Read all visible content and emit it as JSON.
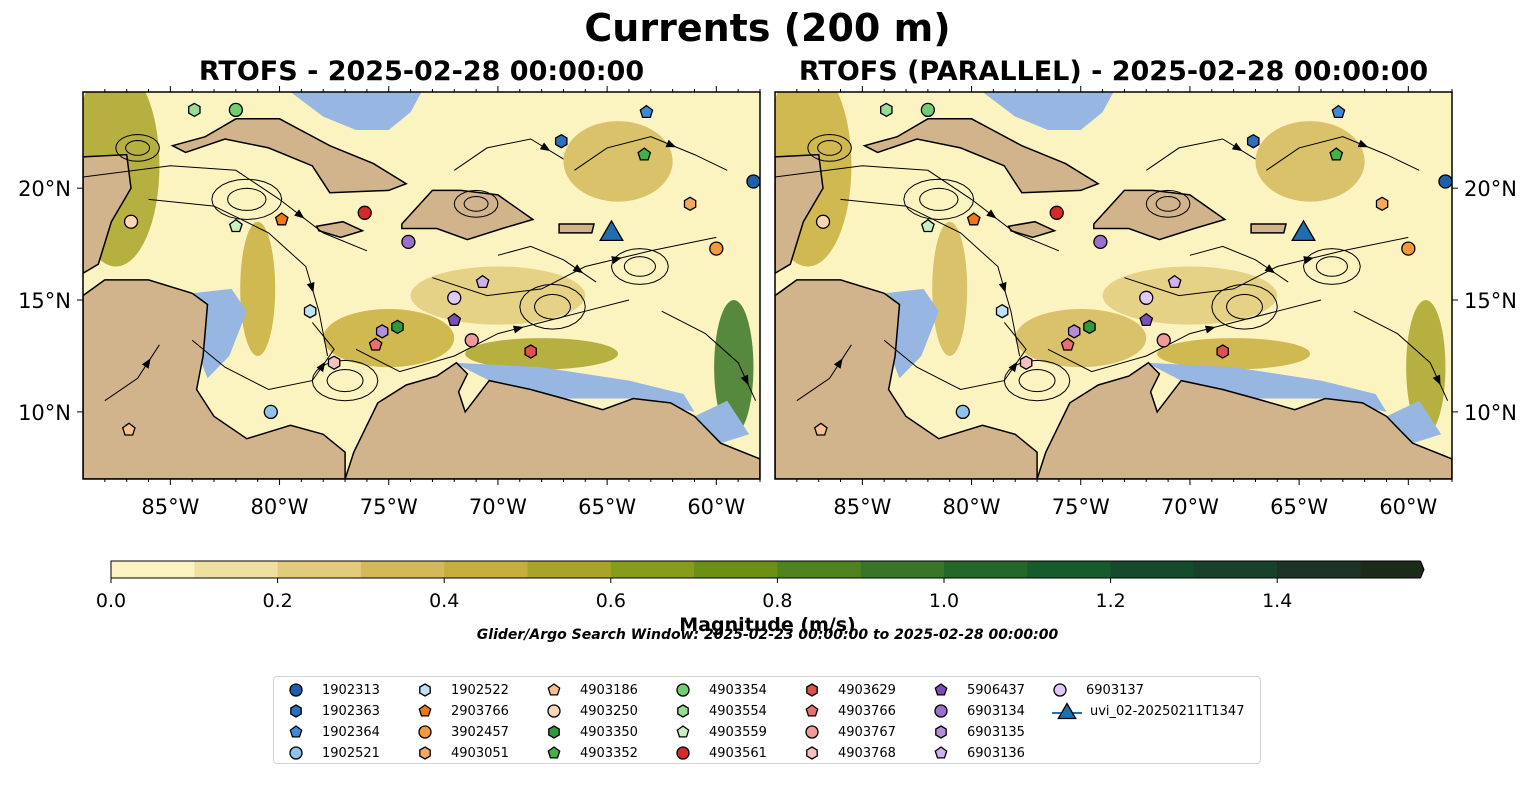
{
  "title": "Currents (200 m)",
  "panels": [
    {
      "title": "RTOFS - 2025-02-28 00:00:00"
    },
    {
      "title": "RTOFS (PARALLEL) - 2025-02-28 00:00:00"
    }
  ],
  "colorbar": {
    "label": "Magnitude (m/s)",
    "ticks": [
      "0.0",
      "0.2",
      "0.4",
      "0.6",
      "0.8",
      "1.0",
      "1.2",
      "1.4"
    ],
    "colors": [
      "#fbf4c0",
      "#efe0a0",
      "#e2cb7c",
      "#d4b95a",
      "#c7ae3c",
      "#a9a32a",
      "#879c1c",
      "#6a9018",
      "#4e8420",
      "#387526",
      "#246829",
      "#155b2b",
      "#144b2c",
      "#19402a",
      "#1c3224",
      "#1c2a1a"
    ]
  },
  "search_window": "Glider/Argo Search Window: 2025-02-23 00:00:00 to 2025-02-28 00:00:00",
  "chart_data": {
    "type": "map",
    "extent": {
      "lon": [
        -89,
        -58
      ],
      "lat": [
        7,
        24.3
      ]
    },
    "x_ticks": [
      "85°W",
      "80°W",
      "75°W",
      "70°W",
      "65°W",
      "60°W"
    ],
    "x_tick_values": [
      -85,
      -80,
      -75,
      -70,
      -65,
      -60
    ],
    "y_ticks": [
      "10°N",
      "15°N",
      "20°N"
    ],
    "y_tick_values": [
      10,
      15,
      20
    ],
    "colors": {
      "land": "#d1b48c",
      "shallow": "#97b6e1",
      "coast": "#000000"
    },
    "platforms": [
      {
        "id": "1902313",
        "marker": "circle",
        "color": "#1f5fa8",
        "lon": -58.3,
        "lat": 20.3
      },
      {
        "id": "1902363",
        "marker": "hexagon",
        "color": "#2a6fc0",
        "lon": -67.1,
        "lat": 22.1
      },
      {
        "id": "1902364",
        "marker": "pentagon",
        "color": "#3f8ad8",
        "lon": -63.2,
        "lat": 23.4
      },
      {
        "id": "1902521",
        "marker": "circle",
        "color": "#8fc3ee",
        "lon": -80.4,
        "lat": 10.0
      },
      {
        "id": "1902522",
        "marker": "hexagon",
        "color": "#bfe0f7",
        "lon": -78.6,
        "lat": 14.5
      },
      {
        "id": "2903766",
        "marker": "pentagon",
        "color": "#f07818",
        "lon": -79.9,
        "lat": 18.6
      },
      {
        "id": "3902457",
        "marker": "circle",
        "color": "#f59a3c",
        "lon": -60.0,
        "lat": 17.3
      },
      {
        "id": "4903051",
        "marker": "hexagon",
        "color": "#f5a860",
        "lon": -61.2,
        "lat": 19.3
      },
      {
        "id": "4903186",
        "marker": "pentagon",
        "color": "#f8c08c",
        "lon": -86.9,
        "lat": 9.2
      },
      {
        "id": "4903250",
        "marker": "circle",
        "color": "#fbd7b4",
        "lon": -86.8,
        "lat": 18.5
      },
      {
        "id": "4903350",
        "marker": "hexagon",
        "color": "#2e9a3c",
        "lon": -74.6,
        "lat": 13.8
      },
      {
        "id": "4903352",
        "marker": "pentagon",
        "color": "#45b045",
        "lon": -63.3,
        "lat": 21.5
      },
      {
        "id": "4903354",
        "marker": "circle",
        "color": "#72cc72",
        "lon": -82.0,
        "lat": 23.5
      },
      {
        "id": "4903554",
        "marker": "hexagon",
        "color": "#98dc98",
        "lon": -83.9,
        "lat": 23.5
      },
      {
        "id": "4903559",
        "marker": "pentagon",
        "color": "#c8f0c0",
        "lon": -82.0,
        "lat": 18.3
      },
      {
        "id": "4903561",
        "marker": "circle",
        "color": "#d62a2a",
        "lon": -76.1,
        "lat": 18.9
      },
      {
        "id": "4903629",
        "marker": "hexagon",
        "color": "#e05050",
        "lon": -68.5,
        "lat": 12.7
      },
      {
        "id": "4903766",
        "marker": "pentagon",
        "color": "#e87070",
        "lon": -75.6,
        "lat": 13.0
      },
      {
        "id": "4903767",
        "marker": "circle",
        "color": "#f09a9a",
        "lon": -71.2,
        "lat": 13.2
      },
      {
        "id": "4903768",
        "marker": "hexagon",
        "color": "#f8c0c0",
        "lon": -77.5,
        "lat": 12.2
      },
      {
        "id": "5906437",
        "marker": "pentagon",
        "color": "#7a50b8",
        "lon": -72.0,
        "lat": 14.1
      },
      {
        "id": "6903134",
        "marker": "circle",
        "color": "#9a70cc",
        "lon": -74.1,
        "lat": 17.6
      },
      {
        "id": "6903135",
        "marker": "hexagon",
        "color": "#b48ed8",
        "lon": -75.3,
        "lat": 13.6
      },
      {
        "id": "6903136",
        "marker": "pentagon",
        "color": "#d2b0ec",
        "lon": -70.7,
        "lat": 15.8
      },
      {
        "id": "6903137",
        "marker": "circle",
        "color": "#e2c8f6",
        "lon": -72.0,
        "lat": 15.1
      },
      {
        "id": "uvi_02-20250211T1347",
        "marker": "triangle",
        "color": "#1f6fb0",
        "lon": -64.8,
        "lat": 18.1
      }
    ]
  }
}
